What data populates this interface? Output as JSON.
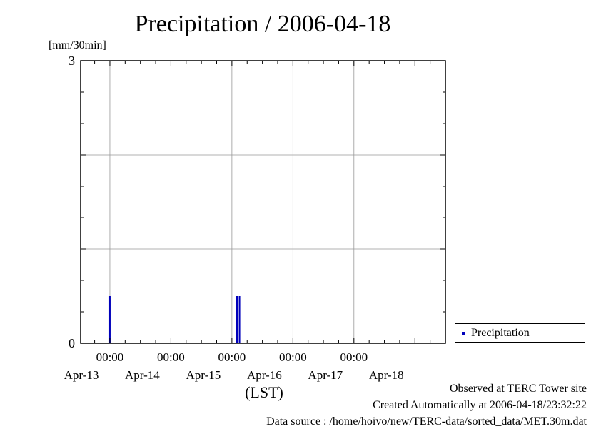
{
  "chart_data": {
    "type": "bar",
    "title": "Precipitation / 2006-04-18",
    "ylabel": "[mm/30min]",
    "xlabel": "(LST)",
    "ylim": [
      0,
      3
    ],
    "y_ticks": [
      0,
      3
    ],
    "xlim": [
      "2006-04-12T12:30",
      "2006-04-18T12:00"
    ],
    "x_ticks": [
      {
        "time": "2006-04-13T00:00",
        "label": "00:00",
        "date": "Apr-13"
      },
      {
        "time": "2006-04-14T00:00",
        "label": "00:00",
        "date": "Apr-14"
      },
      {
        "time": "2006-04-15T00:00",
        "label": "00:00",
        "date": "Apr-15"
      },
      {
        "time": "2006-04-16T00:00",
        "label": "00:00",
        "date": "Apr-16"
      },
      {
        "time": "2006-04-17T00:00",
        "label": "00:00",
        "date": "Apr-17"
      }
    ],
    "x_extra_labels": [
      {
        "time": "2006-04-18T00:00",
        "date": "Apr-18"
      }
    ],
    "grid": true,
    "legend": "right",
    "series": [
      {
        "name": "Precipitation",
        "color": "#0000bb",
        "points": [
          {
            "x": "2006-04-13T00:00",
            "y": 0.5
          },
          {
            "x": "2006-04-15T02:00",
            "y": 0.5
          },
          {
            "x": "2006-04-15T03:00",
            "y": 0.5
          }
        ]
      }
    ]
  },
  "footer": {
    "observed": "Observed at TERC Tower site",
    "created": "Created Automatically at 2006-04-18/23:32:22",
    "source": "Data source : /home/hoivo/new/TERC-data/sorted_data/MET.30m.dat"
  }
}
